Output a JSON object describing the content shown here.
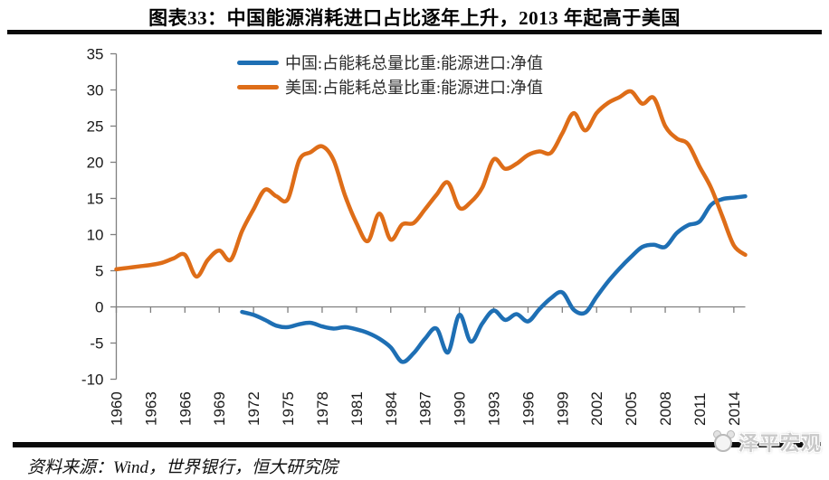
{
  "title": "图表33：中国能源消耗进口占比逐年上升，2013 年起高于美国",
  "source": "资料来源：Wind，世界银行，恒大研究院",
  "watermark": "泽平宏观",
  "chart_data": {
    "type": "line",
    "title": "图表33：中国能源消耗进口占比逐年上升，2013 年起高于美国",
    "xlabel": "",
    "ylabel": "",
    "xlim": [
      1960,
      2015
    ],
    "ylim": [
      -10,
      35
    ],
    "grid": false,
    "legend_position": "top-center",
    "axis_color": "#7f7f7f",
    "y_ticks": [
      35,
      30,
      25,
      20,
      15,
      10,
      5,
      0,
      -5,
      -10
    ],
    "x_tick_step_years": 3,
    "x_tick_labels": [
      "1960",
      "1963",
      "1966",
      "1969",
      "1972",
      "1975",
      "1978",
      "1981",
      "1984",
      "1987",
      "1990",
      "1993",
      "1996",
      "1999",
      "2002",
      "2005",
      "2008",
      "2011",
      "2014"
    ],
    "series": [
      {
        "name": "中国:占能耗总量比重:能源进口:净值",
        "color": "#1e6fb4",
        "start_year": 1971,
        "end_year": 2015,
        "values": [
          -0.7,
          -1.1,
          -1.8,
          -2.6,
          -2.8,
          -2.4,
          -2.2,
          -2.7,
          -3.0,
          -2.8,
          -3.1,
          -3.6,
          -4.4,
          -5.6,
          -7.6,
          -6.4,
          -4.4,
          -3.0,
          -6.3,
          -1.1,
          -4.8,
          -2.3,
          -0.5,
          -1.8,
          -1.0,
          -2.0,
          -0.3,
          1.2,
          2.0,
          -0.4,
          -0.8,
          1.4,
          3.5,
          5.3,
          6.9,
          8.3,
          8.6,
          8.3,
          10.2,
          11.3,
          11.8,
          14.1,
          14.9,
          15.1,
          15.3
        ]
      },
      {
        "name": "美国:占能耗总量比重:能源进口:净值",
        "color": "#de6d18",
        "start_year": 1960,
        "end_year": 2015,
        "values": [
          5.2,
          5.4,
          5.6,
          5.8,
          6.1,
          6.7,
          7.2,
          4.2,
          6.5,
          7.8,
          6.5,
          10.5,
          13.5,
          16.2,
          15.3,
          14.9,
          20.3,
          21.4,
          22.2,
          20.3,
          15.4,
          11.6,
          9.1,
          12.9,
          9.3,
          11.4,
          11.6,
          13.5,
          15.5,
          17.2,
          13.7,
          14.5,
          16.5,
          20.4,
          19.1,
          19.8,
          21.0,
          21.5,
          21.3,
          24.0,
          26.8,
          24.4,
          26.8,
          28.2,
          29.0,
          29.8,
          28.1,
          28.9,
          25.0,
          23.3,
          22.5,
          19.4,
          16.5,
          12.5,
          8.5,
          7.2
        ]
      }
    ]
  }
}
